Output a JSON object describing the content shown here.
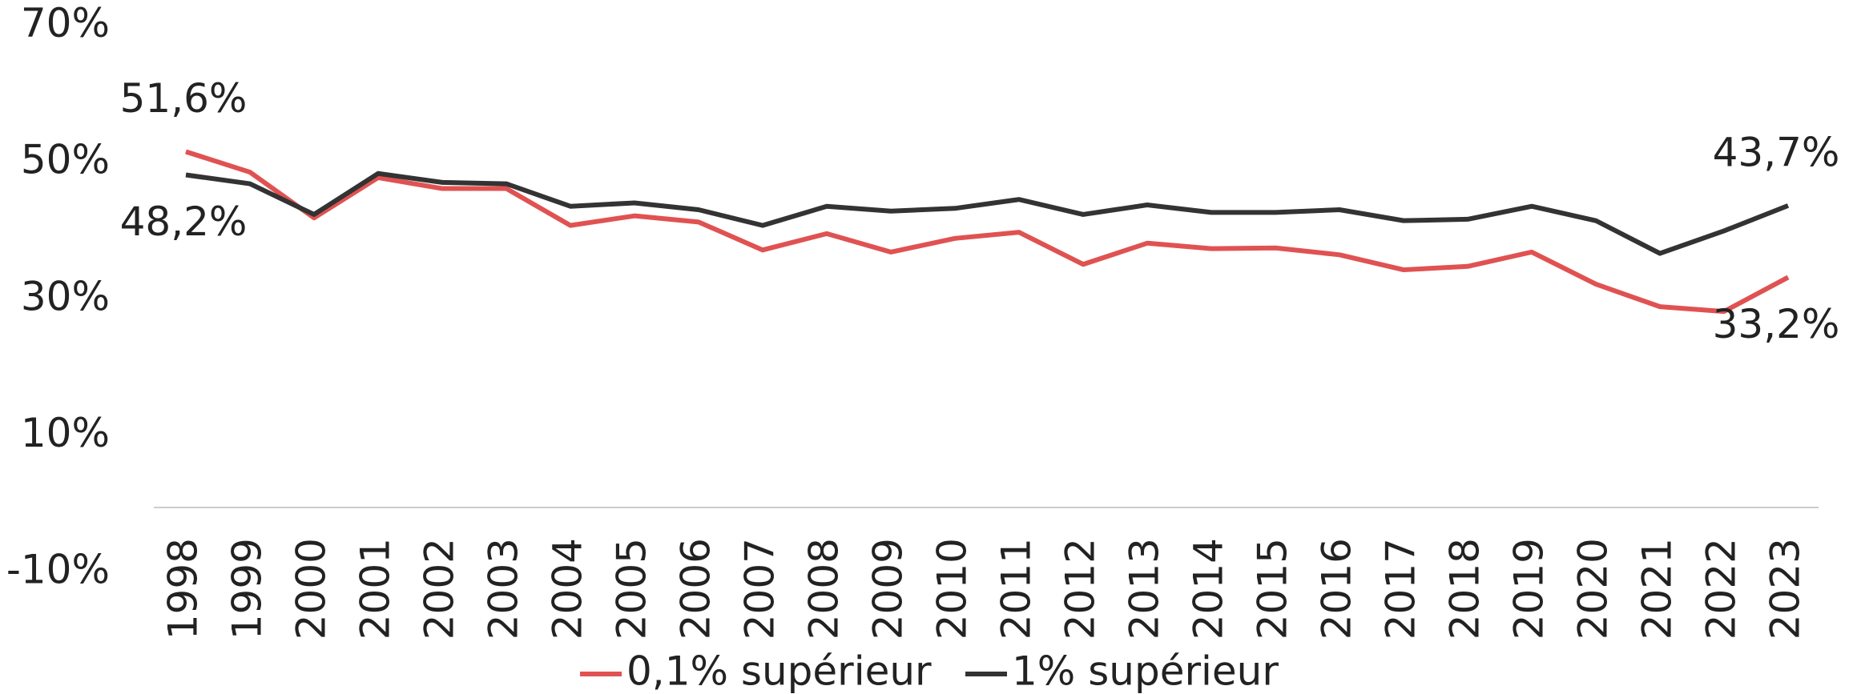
{
  "chart_data": {
    "type": "line",
    "categories": [
      "1998",
      "1999",
      "2000",
      "2001",
      "2002",
      "2003",
      "2004",
      "2005",
      "2006",
      "2007",
      "2008",
      "2009",
      "2010",
      "2011",
      "2012",
      "2013",
      "2014",
      "2015",
      "2016",
      "2017",
      "2018",
      "2019",
      "2020",
      "2021",
      "2022",
      "2023"
    ],
    "series": [
      {
        "name": "0,1% supérieur",
        "color": "#e05252",
        "values": [
          51.6,
          48.6,
          41.9,
          47.8,
          46.2,
          46.2,
          40.8,
          42.2,
          41.3,
          37.2,
          39.6,
          36.9,
          38.9,
          39.8,
          35.1,
          38.2,
          37.4,
          37.5,
          36.5,
          34.3,
          34.8,
          36.9,
          32.2,
          28.9,
          28.2,
          33.2
        ],
        "value_labels": [
          "51,6%",
          null,
          null,
          null,
          null,
          null,
          null,
          null,
          null,
          null,
          null,
          null,
          null,
          null,
          null,
          null,
          null,
          null,
          null,
          null,
          null,
          null,
          null,
          null,
          null,
          "33,2%"
        ]
      },
      {
        "name": "1% supérieur",
        "color": "#333333",
        "values": [
          48.2,
          46.9,
          42.4,
          48.4,
          47.1,
          46.9,
          43.6,
          44.1,
          43.1,
          40.8,
          43.6,
          42.9,
          43.3,
          44.6,
          42.4,
          43.8,
          42.7,
          42.7,
          43.1,
          41.5,
          41.7,
          43.6,
          41.5,
          36.7,
          40.0,
          43.7
        ],
        "value_labels": [
          "48,2%",
          null,
          null,
          null,
          null,
          null,
          null,
          null,
          null,
          null,
          null,
          null,
          null,
          null,
          null,
          null,
          null,
          null,
          null,
          null,
          null,
          null,
          null,
          null,
          null,
          "43,7%"
        ]
      }
    ],
    "ylim": [
      -10,
      70
    ],
    "yticks": [
      {
        "value": -10,
        "label": "-10%"
      },
      {
        "value": 10,
        "label": "10%"
      },
      {
        "value": 30,
        "label": "30%"
      },
      {
        "value": 50,
        "label": "50%"
      },
      {
        "value": 70,
        "label": "70%"
      }
    ],
    "grid": false,
    "legend": "bottom"
  }
}
